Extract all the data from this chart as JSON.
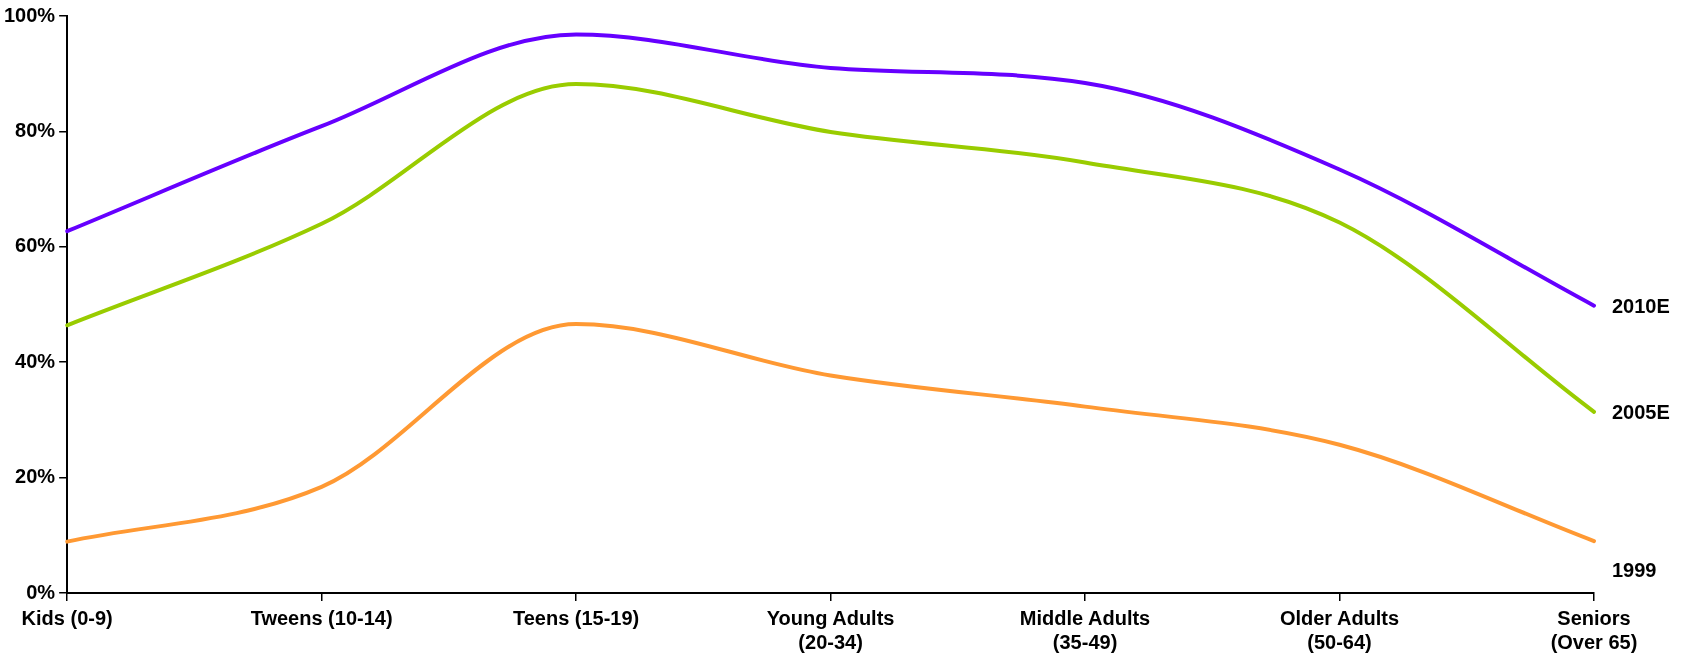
{
  "chart_data": {
    "type": "line",
    "categories": [
      "Kids (0-9)",
      "Tweens (10-14)",
      "Teens (15-19)",
      "Young Adults (20-34)",
      "Middle Adults (35-49)",
      "Older Adults (50-64)",
      "Seniors (Over 65)"
    ],
    "series": [
      {
        "name": "2010E",
        "color": "#6600ff",
        "values": [
          62.7,
          80.9,
          96.8,
          91.0,
          88.4,
          73.4,
          49.8
        ]
      },
      {
        "name": "2005E",
        "color": "#99cc00",
        "values": [
          46.4,
          64.0,
          88.2,
          79.9,
          74.6,
          64.2,
          31.4
        ]
      },
      {
        "name": "1999",
        "color": "#ff9933",
        "values": [
          8.9,
          18.4,
          46.6,
          37.7,
          32.3,
          25.7,
          9.0
        ]
      }
    ],
    "ylim": [
      0,
      100
    ],
    "yticks": [
      {
        "value": 0,
        "label": "0%"
      },
      {
        "value": 20,
        "label": "20%"
      },
      {
        "value": 40,
        "label": "40%"
      },
      {
        "value": 60,
        "label": "60%"
      },
      {
        "value": 80,
        "label": "80%"
      },
      {
        "value": 100,
        "label": "100%"
      }
    ],
    "grid": false,
    "legend": false,
    "marker": "none",
    "line_style": "solid"
  }
}
